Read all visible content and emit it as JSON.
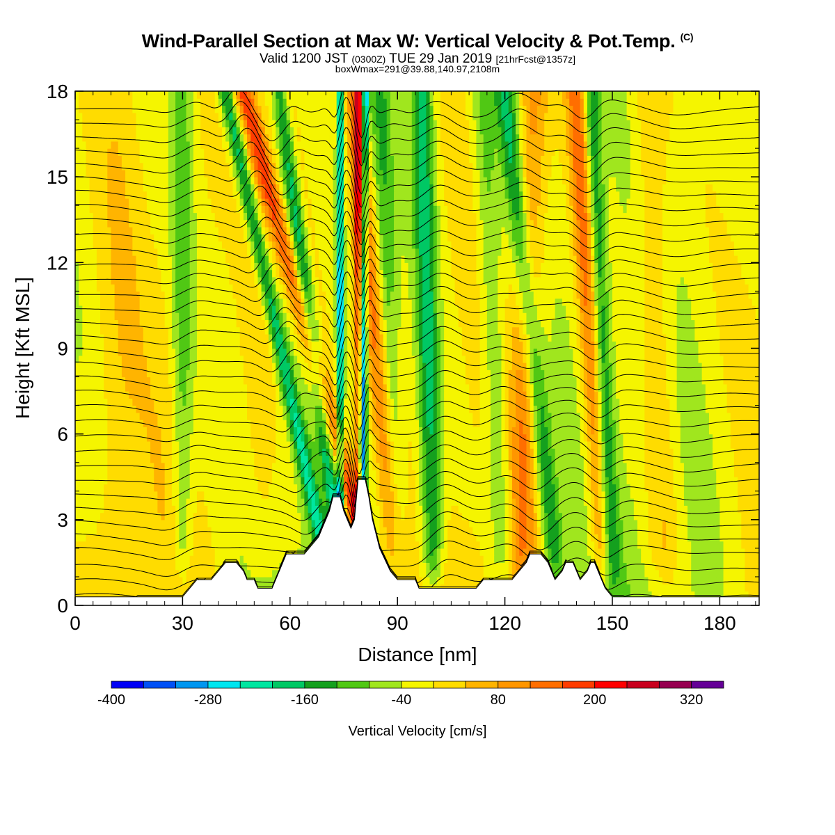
{
  "header": {
    "title_main": "Wind-Parallel Section at Max W: Vertical Velocity & Pot.Temp.",
    "title_mark": "(C)",
    "subtitle_a": "Valid 1200 JST",
    "subtitle_b": "(0300Z)",
    "subtitle_c": "TUE 29 Jan 2019",
    "subtitle_d": "[21hrFcst@1357z]",
    "info_line": "boxWmax=291@39.88,140.97,2108m"
  },
  "chart_data": {
    "type": "heatmap",
    "xlabel": "Distance [nm]",
    "ylabel": "Height [Kft MSL]",
    "xlim": [
      0,
      191
    ],
    "ylim": [
      0,
      18
    ],
    "x_ticks": [
      0,
      30,
      60,
      90,
      120,
      150,
      180
    ],
    "y_ticks": [
      0,
      3,
      6,
      9,
      12,
      15,
      18
    ],
    "colorbar": {
      "label": "Vertical Velocity [cm/s]",
      "min": -400,
      "max": 360,
      "step": 40,
      "tick_labels": [
        -400,
        -280,
        -160,
        -40,
        80,
        200,
        320
      ],
      "colors": [
        "#0000f5",
        "#0050f5",
        "#0096f0",
        "#00e6f0",
        "#00e6a0",
        "#00c864",
        "#14a01e",
        "#50c814",
        "#a0e61e",
        "#f5f500",
        "#ffdc00",
        "#ffb400",
        "#ff9600",
        "#ff6e00",
        "#ff3c00",
        "#ff0000",
        "#c8001e",
        "#960050",
        "#640096"
      ]
    },
    "terrain_kft": [
      [
        0,
        0.3
      ],
      [
        10,
        0.3
      ],
      [
        20,
        0.3
      ],
      [
        30,
        0.3
      ],
      [
        32,
        0.6
      ],
      [
        34,
        0.9
      ],
      [
        38,
        0.9
      ],
      [
        40,
        1.2
      ],
      [
        42,
        1.5
      ],
      [
        44,
        1.5
      ],
      [
        45,
        1.5
      ],
      [
        47,
        1.2
      ],
      [
        48,
        0.9
      ],
      [
        50,
        0.9
      ],
      [
        51,
        0.6
      ],
      [
        55,
        0.6
      ],
      [
        57,
        1.2
      ],
      [
        58,
        1.5
      ],
      [
        59,
        1.8
      ],
      [
        64,
        1.8
      ],
      [
        66,
        2.1
      ],
      [
        68,
        2.4
      ],
      [
        69,
        2.7
      ],
      [
        70,
        3.0
      ],
      [
        71,
        3.3
      ],
      [
        72,
        3.8
      ],
      [
        74,
        3.8
      ],
      [
        75,
        3.3
      ],
      [
        76,
        3.0
      ],
      [
        77,
        2.7
      ],
      [
        78,
        3.0
      ],
      [
        79,
        4.4
      ],
      [
        81,
        4.4
      ],
      [
        82,
        3.8
      ],
      [
        83,
        3.0
      ],
      [
        85,
        2.0
      ],
      [
        88,
        1.2
      ],
      [
        90,
        0.9
      ],
      [
        95,
        0.9
      ],
      [
        96,
        0.6
      ],
      [
        112,
        0.6
      ],
      [
        114,
        0.9
      ],
      [
        122,
        0.9
      ],
      [
        124,
        1.2
      ],
      [
        126,
        1.5
      ],
      [
        127,
        1.8
      ],
      [
        130,
        1.8
      ],
      [
        132,
        1.5
      ],
      [
        133,
        1.2
      ],
      [
        134,
        0.9
      ],
      [
        136,
        1.2
      ],
      [
        137,
        1.5
      ],
      [
        139,
        1.5
      ],
      [
        140,
        1.2
      ],
      [
        141,
        0.9
      ],
      [
        143,
        1.2
      ],
      [
        144,
        1.5
      ],
      [
        145,
        1.5
      ],
      [
        146,
        1.2
      ],
      [
        147,
        0.9
      ],
      [
        148,
        0.6
      ],
      [
        150,
        0.3
      ],
      [
        191,
        0.3
      ]
    ],
    "updraft_bands": [
      {
        "x_base": 79,
        "x_top": 79,
        "w": 180,
        "width": 1.2
      },
      {
        "x_base": 84,
        "x_top": 47,
        "w": 190,
        "width": 3.0
      },
      {
        "x_base": 90,
        "x_top": 78,
        "w": 150,
        "width": 3.0
      },
      {
        "x_base": 148,
        "x_top": 140,
        "w": 170,
        "width": 3.0
      },
      {
        "x_base": 124,
        "x_top": 128,
        "w": 110,
        "width": 4.0
      },
      {
        "x_base": 82,
        "x_top": 58,
        "w": 80,
        "width": 4.0
      },
      {
        "x_base": 165,
        "x_top": 160,
        "w": 80,
        "width": 5.0
      },
      {
        "x_base": 12,
        "x_top": 12,
        "w": 30,
        "width": 6.0
      },
      {
        "x_base": 52,
        "x_top": 52,
        "w": 40,
        "width": 5.0
      }
    ],
    "downdraft_bands": [
      {
        "x_base": 80,
        "x_top": 81,
        "w": -310,
        "width": 1.0
      },
      {
        "x_base": 74,
        "x_top": 74,
        "w": -270,
        "width": 1.0
      },
      {
        "x_base": 72,
        "x_top": 42,
        "w": -170,
        "width": 2.2
      },
      {
        "x_base": 76,
        "x_top": 57,
        "w": -170,
        "width": 2.2
      },
      {
        "x_base": 100,
        "x_top": 97,
        "w": -160,
        "width": 3.0
      },
      {
        "x_base": 135,
        "x_top": 120,
        "w": -150,
        "width": 3.0
      },
      {
        "x_base": 150,
        "x_top": 144,
        "w": -150,
        "width": 2.5
      },
      {
        "x_base": 120,
        "x_top": 114,
        "w": -90,
        "width": 3.5
      },
      {
        "x_base": 30,
        "x_top": 30,
        "w": -90,
        "width": 3.0
      },
      {
        "x_base": 90,
        "x_top": 85,
        "w": -90,
        "width": 3.0
      }
    ],
    "isentropes_kft": [
      0.3,
      0.8,
      1.3,
      1.9,
      2.4,
      2.9,
      3.4,
      3.9,
      4.4,
      4.9,
      5.4,
      5.9,
      6.4,
      6.9,
      7.4,
      7.9,
      8.4,
      8.9,
      9.4,
      9.9,
      10.4,
      10.9,
      11.4,
      11.9,
      12.4,
      12.9,
      13.4,
      13.9,
      14.4,
      14.9,
      15.4,
      15.9,
      16.4,
      16.9,
      17.4
    ]
  }
}
